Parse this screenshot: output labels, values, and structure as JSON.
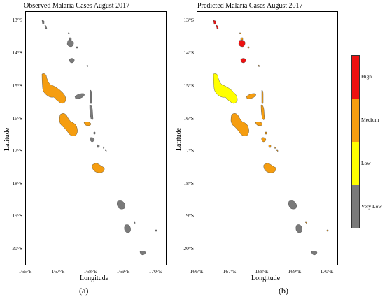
{
  "maps": [
    {
      "title": "Observed Malaria Cases August 2017",
      "caption": "(a)",
      "xlabel": "Longitude",
      "ylabel": "Latitude",
      "colors": {
        "santo": "#f59d10",
        "malekula": "#f59d10",
        "efate": "#f59d10",
        "ambae": "#7a7a7a",
        "maewo": "#7a7a7a",
        "pentecost": "#7a7a7a",
        "banks_big": "#7a7a7a",
        "banks_mid": "#7a7a7a",
        "torres": "#7a7a7a",
        "tanna": "#7a7a7a",
        "erromango": "#7a7a7a",
        "aneityum": "#7a7a7a",
        "paama": "#7a7a7a",
        "epi": "#7a7a7a",
        "shepherds": "#7a7a7a",
        "small": "#7a7a7a",
        "ambrym": "#f59d10"
      }
    },
    {
      "title": "Predicted Malaria Cases August 2017",
      "caption": "(b)",
      "xlabel": "Longitude",
      "ylabel": "Latitude",
      "colors": {
        "santo": "#ffff00",
        "malekula": "#f59d10",
        "efate": "#f59d10",
        "ambae": "#f59d10",
        "maewo": "#f59d10",
        "pentecost": "#f59d10",
        "banks_big": "#ee1111",
        "banks_mid": "#ee1111",
        "torres": "#ee1111",
        "tanna": "#7a7a7a",
        "erromango": "#7a7a7a",
        "aneityum": "#7a7a7a",
        "paama": "#f59d10",
        "epi": "#f59d10",
        "shepherds": "#f59d10",
        "small": "#f59d10",
        "ambrym": "#f59d10"
      }
    }
  ],
  "axes": {
    "lat_ticks": [
      "13°S",
      "14°S",
      "15°S",
      "16°S",
      "17°S",
      "18°S",
      "19°S",
      "20°S"
    ],
    "lon_ticks": [
      "166°E",
      "167°E",
      "168°E",
      "169°E",
      "170°E"
    ]
  },
  "legend": {
    "categories": [
      {
        "label": "High",
        "color": "#ee1111"
      },
      {
        "label": "Medium",
        "color": "#f59d10"
      },
      {
        "label": "Low",
        "color": "#ffff00"
      },
      {
        "label": "Very Low",
        "color": "#7a7a7a"
      }
    ]
  }
}
